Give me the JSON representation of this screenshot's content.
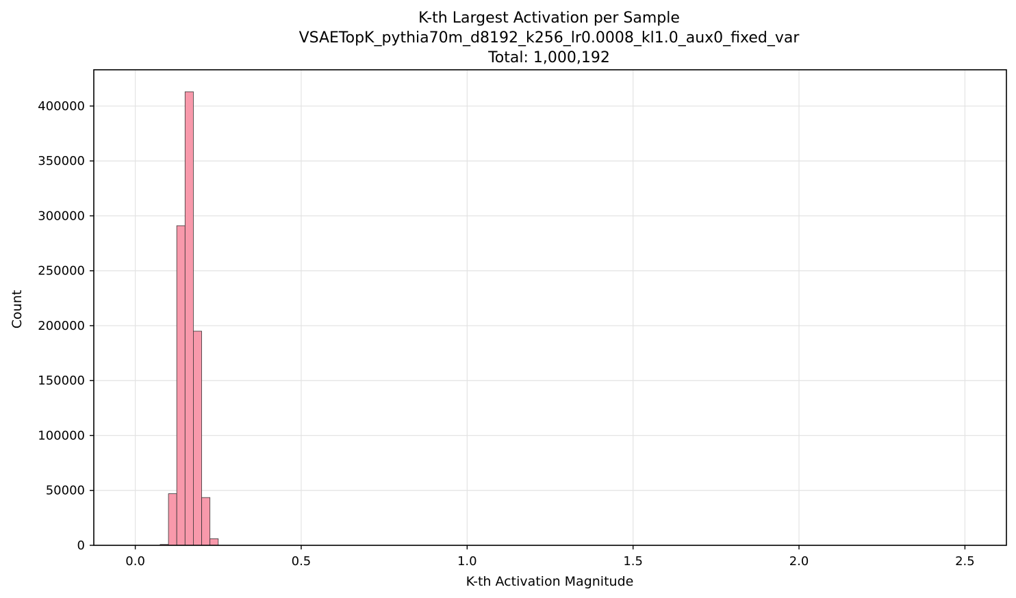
{
  "chart_data": {
    "type": "bar",
    "title": "K-th Largest Activation per Sample",
    "subtitle": "VSAETopK_pythia70m_d8192_k256_lr0.0008_kl1.0_aux0_fixed_var",
    "total_label": "Total: 1,000,192",
    "xlabel": "K-th Activation Magnitude",
    "ylabel": "Count",
    "xlim": [
      -0.125,
      2.625
    ],
    "ylim": [
      0,
      433000
    ],
    "grid": true,
    "bar_color": "#f899ab",
    "edge_color": "#333333",
    "bin_width": 0.025,
    "bins": [
      {
        "start": 0.075,
        "count": 800
      },
      {
        "start": 0.1,
        "count": 47000
      },
      {
        "start": 0.125,
        "count": 291000
      },
      {
        "start": 0.15,
        "count": 413000
      },
      {
        "start": 0.175,
        "count": 195000
      },
      {
        "start": 0.2,
        "count": 43500
      },
      {
        "start": 0.225,
        "count": 6000
      }
    ],
    "x_ticks": [
      {
        "value": 0.0,
        "label": "0.0"
      },
      {
        "value": 0.5,
        "label": "0.5"
      },
      {
        "value": 1.0,
        "label": "1.0"
      },
      {
        "value": 1.5,
        "label": "1.5"
      },
      {
        "value": 2.0,
        "label": "2.0"
      },
      {
        "value": 2.5,
        "label": "2.5"
      }
    ],
    "y_ticks": [
      {
        "value": 0,
        "label": "0"
      },
      {
        "value": 50000,
        "label": "50000"
      },
      {
        "value": 100000,
        "label": "100000"
      },
      {
        "value": 150000,
        "label": "150000"
      },
      {
        "value": 200000,
        "label": "200000"
      },
      {
        "value": 250000,
        "label": "250000"
      },
      {
        "value": 300000,
        "label": "300000"
      },
      {
        "value": 350000,
        "label": "350000"
      },
      {
        "value": 400000,
        "label": "400000"
      }
    ]
  }
}
